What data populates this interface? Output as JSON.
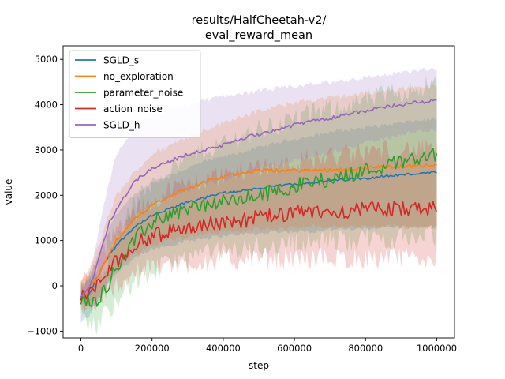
{
  "chart_data": {
    "type": "line",
    "title_lines": [
      "results/HalfCheetah-v2/",
      "eval_reward_mean"
    ],
    "xlabel": "step",
    "ylabel": "value",
    "xlim": [
      -50000,
      1050000
    ],
    "ylim": [
      -1150,
      5300
    ],
    "xticks": [
      0,
      200000,
      400000,
      600000,
      800000,
      1000000
    ],
    "yticks": [
      -1000,
      0,
      1000,
      2000,
      3000,
      4000,
      5000
    ],
    "grid": false,
    "legend_position": "top-left",
    "shaded_band": "min-max range across runs",
    "series": [
      {
        "name": "SGLD_s",
        "color": "#1f77b4",
        "x": [
          0,
          20000,
          40000,
          60000,
          80000,
          100000,
          150000,
          200000,
          250000,
          300000,
          350000,
          400000,
          450000,
          500000,
          550000,
          600000,
          650000,
          700000,
          750000,
          800000,
          850000,
          900000,
          950000,
          1000000
        ],
        "y": [
          -300,
          -250,
          100,
          400,
          700,
          900,
          1300,
          1550,
          1700,
          1850,
          1950,
          2050,
          2100,
          2150,
          2200,
          2250,
          2280,
          2320,
          2350,
          2380,
          2420,
          2450,
          2480,
          2500
        ],
        "lower": [
          -800,
          -700,
          -400,
          -200,
          100,
          300,
          600,
          800,
          900,
          1000,
          1050,
          1100,
          1150,
          1150,
          1200,
          1200,
          1200,
          1250,
          1250,
          1250,
          1300,
          1300,
          1300,
          1300
        ],
        "upper": [
          0,
          100,
          500,
          900,
          1300,
          1600,
          2000,
          2300,
          2450,
          2600,
          2750,
          2850,
          2950,
          3050,
          3150,
          3250,
          3300,
          3400,
          3450,
          3500,
          3550,
          3600,
          3650,
          3700
        ],
        "noise": 30
      },
      {
        "name": "no_exploration",
        "color": "#ff7f0e",
        "x": [
          0,
          20000,
          40000,
          60000,
          80000,
          100000,
          150000,
          200000,
          250000,
          300000,
          350000,
          400000,
          450000,
          500000,
          550000,
          600000,
          650000,
          700000,
          750000,
          800000,
          850000,
          900000,
          950000,
          1000000
        ],
        "y": [
          -250,
          -150,
          100,
          400,
          700,
          1000,
          1450,
          1800,
          2000,
          2150,
          2300,
          2400,
          2500,
          2550,
          2550,
          2550,
          2550,
          2560,
          2580,
          2600,
          2620,
          2640,
          2650,
          2650
        ],
        "lower": [
          -600,
          -500,
          -300,
          -100,
          200,
          400,
          700,
          900,
          1000,
          1100,
          1150,
          1200,
          1200,
          1250,
          1250,
          1300,
          1300,
          1300,
          1300,
          1300,
          1300,
          1300,
          1300,
          1300
        ],
        "upper": [
          100,
          300,
          700,
          1100,
          1600,
          2000,
          2500,
          2900,
          3100,
          3300,
          3450,
          3600,
          3750,
          3850,
          3950,
          4050,
          4100,
          4150,
          4200,
          4250,
          4300,
          4350,
          4400,
          4400
        ],
        "noise": 40
      },
      {
        "name": "parameter_noise",
        "color": "#2ca02c",
        "x": [
          0,
          20000,
          40000,
          60000,
          80000,
          100000,
          150000,
          200000,
          250000,
          300000,
          350000,
          400000,
          450000,
          500000,
          550000,
          600000,
          650000,
          700000,
          750000,
          800000,
          850000,
          900000,
          950000,
          1000000
        ],
        "y": [
          -300,
          -350,
          -350,
          -150,
          100,
          400,
          1000,
          1400,
          1600,
          1700,
          1800,
          1850,
          1900,
          2000,
          2100,
          2200,
          2300,
          2350,
          2450,
          2550,
          2650,
          2750,
          2850,
          2900
        ],
        "lower": [
          -600,
          -800,
          -900,
          -700,
          -500,
          -300,
          100,
          300,
          500,
          600,
          700,
          750,
          800,
          850,
          900,
          950,
          950,
          1000,
          1000,
          1050,
          1050,
          1050,
          1100,
          1100
        ],
        "upper": [
          0,
          100,
          200,
          400,
          700,
          1100,
          1800,
          2300,
          2600,
          2800,
          3000,
          3150,
          3300,
          3450,
          3550,
          3700,
          3800,
          3900,
          4000,
          4100,
          4200,
          4300,
          4400,
          4450
        ],
        "noise": 170
      },
      {
        "name": "action_noise",
        "color": "#d62728",
        "x": [
          0,
          20000,
          40000,
          60000,
          80000,
          100000,
          150000,
          200000,
          250000,
          300000,
          350000,
          400000,
          450000,
          500000,
          550000,
          600000,
          650000,
          700000,
          750000,
          800000,
          850000,
          900000,
          950000,
          1000000
        ],
        "y": [
          -250,
          -200,
          -50,
          150,
          350,
          550,
          900,
          1100,
          1200,
          1300,
          1350,
          1400,
          1450,
          1500,
          1550,
          1600,
          1620,
          1640,
          1660,
          1680,
          1700,
          1700,
          1700,
          1700
        ],
        "lower": [
          -500,
          -500,
          -400,
          -250,
          -100,
          50,
          250,
          400,
          450,
          500,
          550,
          550,
          600,
          600,
          600,
          600,
          600,
          600,
          600,
          600,
          600,
          600,
          600,
          600
        ],
        "upper": [
          100,
          200,
          400,
          700,
          1000,
          1200,
          1600,
          1900,
          2100,
          2250,
          2350,
          2450,
          2550,
          2650,
          2700,
          2750,
          2800,
          2850,
          2900,
          2950,
          3000,
          3000,
          3000,
          3000
        ],
        "noise": 170
      },
      {
        "name": "SGLD_h",
        "color": "#9467bd",
        "x": [
          0,
          20000,
          40000,
          60000,
          80000,
          100000,
          150000,
          200000,
          250000,
          300000,
          350000,
          400000,
          450000,
          500000,
          550000,
          600000,
          650000,
          700000,
          750000,
          800000,
          850000,
          900000,
          950000,
          1000000
        ],
        "y": [
          -250,
          -100,
          300,
          900,
          1400,
          1700,
          2300,
          2600,
          2750,
          2900,
          3000,
          3100,
          3250,
          3350,
          3450,
          3550,
          3650,
          3700,
          3800,
          3850,
          3950,
          4000,
          4050,
          4100
        ],
        "lower": [
          -400,
          -300,
          0,
          400,
          800,
          1100,
          1500,
          1800,
          1950,
          2100,
          2250,
          2350,
          2450,
          2550,
          2650,
          2750,
          2850,
          2950,
          3050,
          3150,
          3250,
          3350,
          3400,
          3450
        ],
        "upper": [
          -100,
          200,
          800,
          1600,
          2300,
          2900,
          3500,
          3750,
          3900,
          4000,
          4100,
          4200,
          4250,
          4300,
          4350,
          4400,
          4450,
          4500,
          4550,
          4600,
          4650,
          4700,
          4750,
          4800
        ],
        "noise": 40
      }
    ]
  }
}
